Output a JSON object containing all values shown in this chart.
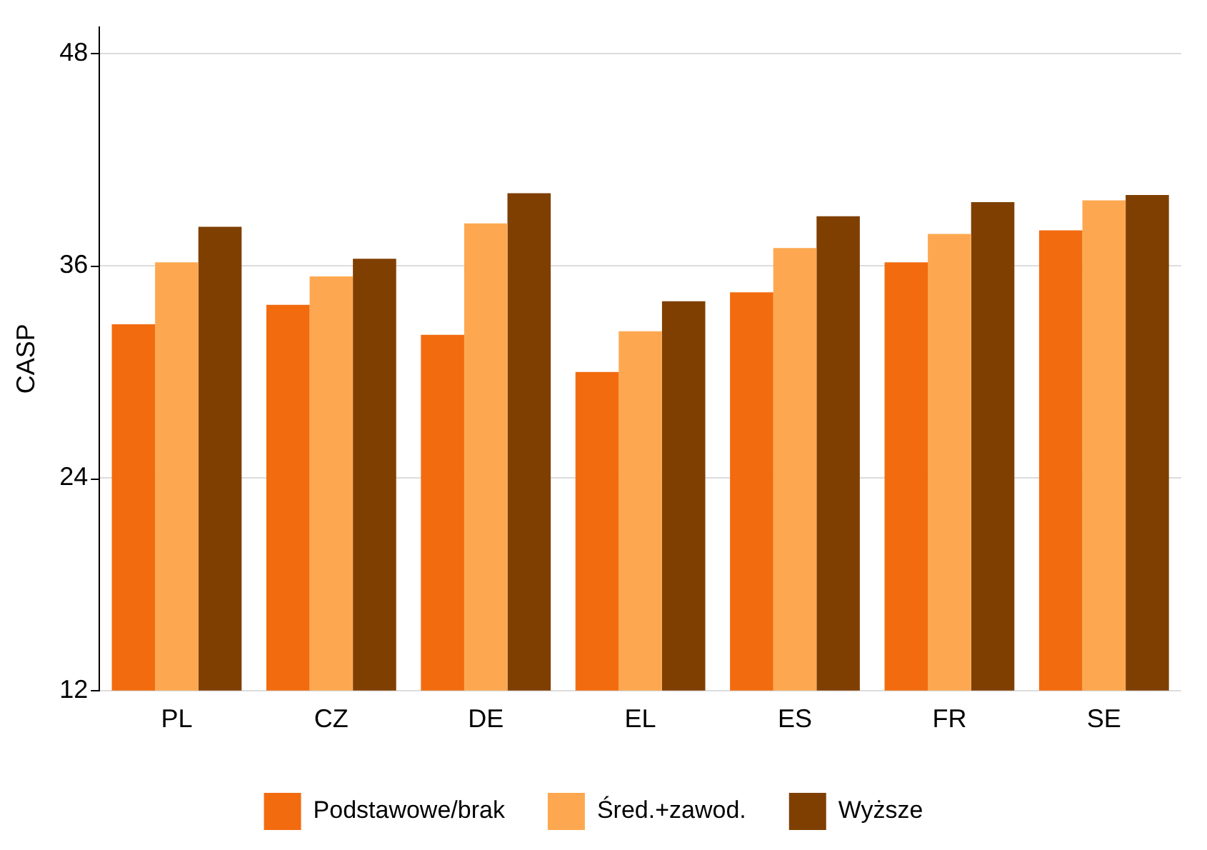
{
  "chart_data": {
    "type": "bar",
    "ylabel": "CASP",
    "categories": [
      "PL",
      "CZ",
      "DE",
      "EL",
      "ES",
      "FR",
      "SE"
    ],
    "series": [
      {
        "name": "Podstawowe/brak",
        "color": "#f26b0f",
        "values": [
          32.7,
          33.8,
          32.1,
          30.0,
          34.5,
          36.2,
          38.0
        ]
      },
      {
        "name": "Śred.+zawod.",
        "color": "#fda850",
        "values": [
          36.2,
          35.4,
          38.4,
          32.3,
          37.0,
          37.8,
          39.7
        ]
      },
      {
        "name": "Wyższe",
        "color": "#7f3f00",
        "values": [
          38.2,
          36.4,
          40.1,
          34.0,
          38.8,
          39.6,
          40.0
        ]
      }
    ],
    "ylim": [
      12,
      49.5
    ],
    "yticks": [
      12,
      24,
      36,
      48
    ],
    "grid": "y",
    "legend": "bottom"
  }
}
